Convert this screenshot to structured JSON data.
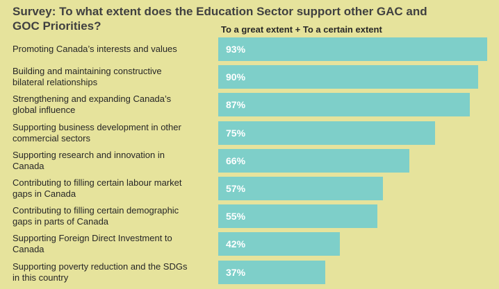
{
  "chart_data": {
    "type": "bar",
    "orientation": "horizontal",
    "title": "Survey: To what extent does the Education Sector support other GAC and\nGOC Priorities?",
    "subtitle": "To a great extent + To a certain extent",
    "categories": [
      "Promoting Canada’s interests and  values",
      "Building and maintaining constructive\nbilateral relationships",
      "Strengthening and expanding Canada’s\nglobal influence",
      "Supporting business development in other\ncommercial sectors",
      "Supporting research and innovation  in\nCanada",
      "Contributing to filling certain labour market\ngaps in Canada",
      "Contributing to filling certain demographic\ngaps in parts of Canada",
      "Supporting Foreign Direct Investment to\nCanada",
      "Supporting poverty reduction and the SDGs\nin this country"
    ],
    "values": [
      93,
      90,
      87,
      75,
      66,
      57,
      55,
      42,
      37
    ],
    "value_labels": [
      "93%",
      "90%",
      "87%",
      "75%",
      "66%",
      "57%",
      "55%",
      "42%",
      "37%"
    ],
    "color": "#7ecfc9",
    "xlim": [
      0,
      100
    ]
  }
}
